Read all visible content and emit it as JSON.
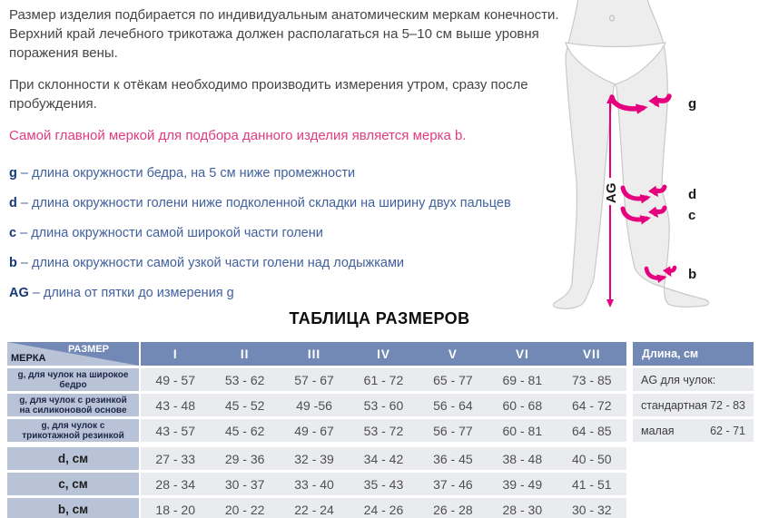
{
  "intro": {
    "p1": "Размер изделия подбирается по индивидуальным анатомическим меркам конечности. Верхний край лечебного трикотажа должен располагаться на 5–10 см выше уровня поражения вены.",
    "p2": "При склонности к отёкам необходимо производить измерения утром, сразу после пробуждения.",
    "highlight": "Самой главной меркой для подбора данного изделия является мерка b."
  },
  "measurements": [
    {
      "letter": "g",
      "text": "длина окружности бедра, на 5 см ниже промежности"
    },
    {
      "letter": "d",
      "text": "длина окружности голени ниже подколенной складки на ширину двух пальцев"
    },
    {
      "letter": "c",
      "text": "длина окружности самой широкой части голени"
    },
    {
      "letter": "b",
      "text": "длина окружности самой узкой части голени над лодыжками"
    },
    {
      "letter": "AG",
      "text": "длина от пятки до измерения g"
    }
  ],
  "diagram": {
    "thigh_label": "g",
    "below_knee_label": "d",
    "calf_label": "c",
    "ankle_label": "b",
    "ag_label": "AG"
  },
  "size_table": {
    "title": "ТАБЛИЦА РАЗМЕРОВ",
    "corner": {
      "top": "РАЗМЕР",
      "bottom": "МЕРКА"
    },
    "columns": [
      "I",
      "II",
      "III",
      "IV",
      "V",
      "VI",
      "VII"
    ],
    "rows": [
      {
        "label": "g, для чулок на широкое бедро",
        "small": true,
        "values": [
          "49 - 57",
          "53 - 62",
          "57 - 67",
          "61 - 72",
          "65 - 77",
          "69 - 81",
          "73 - 85"
        ]
      },
      {
        "label": "g, для чулок с резинкой на силиконовой основе",
        "small": true,
        "values": [
          "43 - 48",
          "45 - 52",
          "49 -56",
          "53 - 60",
          "56 - 64",
          "60 - 68",
          "64 - 72"
        ]
      },
      {
        "label": "g, для чулок с трикотажной резинкой",
        "small": true,
        "values": [
          "43 - 57",
          "45 - 62",
          "49 - 67",
          "53 - 72",
          "56 - 77",
          "60 - 81",
          "64 - 85"
        ]
      },
      {
        "label": "d, см",
        "small": false,
        "values": [
          "27 - 33",
          "29 - 36",
          "32 - 39",
          "34 - 42",
          "36 - 45",
          "38 - 48",
          "40 - 50"
        ]
      },
      {
        "label": "c, см",
        "small": false,
        "values": [
          "28 - 34",
          "30 - 37",
          "33 - 40",
          "35 - 43",
          "37 - 46",
          "39 - 49",
          "41 - 51"
        ]
      },
      {
        "label": "b, см",
        "small": false,
        "values": [
          "18 - 20",
          "20 - 22",
          "22 - 24",
          "24 - 26",
          "26 - 28",
          "28 - 30",
          "30 - 32"
        ]
      }
    ]
  },
  "length_panel": {
    "header": "Длина, см",
    "subheader": "AG для чулок:",
    "rows": [
      {
        "label": "стандартная",
        "value": "72 - 83"
      },
      {
        "label": "малая",
        "value": "62 - 71"
      }
    ]
  },
  "colors": {
    "accent_pink": "#e5007d",
    "highlight_text_pink": "#e23a80",
    "header_blue": "#7289b5",
    "label_blue": "#b9c3d8",
    "cell_gray": "#e9ebef",
    "list_text_blue": "#41619e"
  }
}
